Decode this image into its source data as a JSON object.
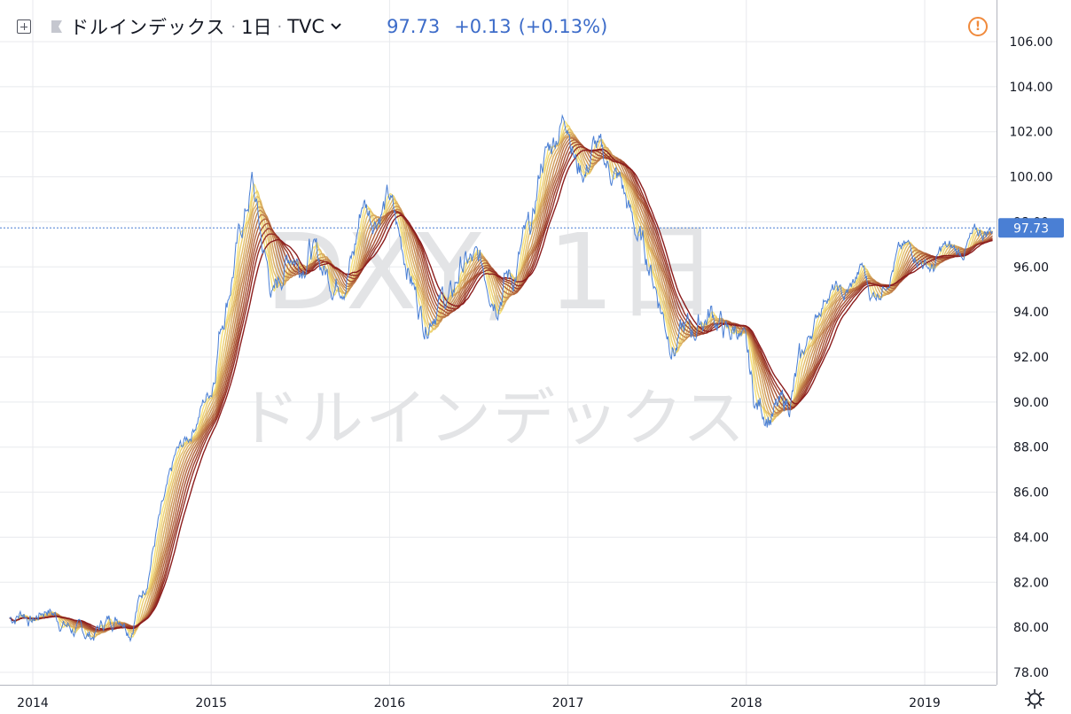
{
  "header": {
    "symbol_name": "ドルインデックス",
    "interval": "1日",
    "source": "TVC",
    "last_price": "97.73",
    "change": "+0.13",
    "change_pct": "(+0.13%)",
    "separator": "·"
  },
  "watermark": {
    "ticker": "DXY, 1日",
    "name": "ドルインデックス"
  },
  "price_label": "97.73",
  "colors": {
    "price_line": "#4a7fd4",
    "price_label_bg": "#4a7fd4",
    "ribbon_fast": "#f6e27a",
    "ribbon_slow": "#8b1c1c",
    "alert": "#f08a3c",
    "grid": "#e8eaed"
  },
  "icons": [
    "plus-square-icon",
    "flag-icon",
    "chevron-down-icon",
    "alert-icon",
    "settings-gear-icon"
  ],
  "chart_data": {
    "type": "line",
    "title": "ドルインデックス · 1日 · TVC",
    "x_ticks": [
      "2014",
      "2015",
      "2016",
      "2017",
      "2018",
      "2019"
    ],
    "x_range": [
      2013.87,
      2019.42
    ],
    "y_ticks": [
      "78.00",
      "80.00",
      "82.00",
      "84.00",
      "86.00",
      "88.00",
      "90.00",
      "92.00",
      "94.00",
      "96.00",
      "98.00",
      "100.00",
      "102.00",
      "104.00",
      "106.00"
    ],
    "ylim": [
      77.6,
      107.0
    ],
    "grid": true,
    "last_value": 97.73,
    "series": [
      {
        "role": "price",
        "x": [
          2013.87,
          2013.95,
          2014.0,
          2014.08,
          2014.17,
          2014.25,
          2014.33,
          2014.4,
          2014.5,
          2014.55,
          2014.58,
          2014.63,
          2014.7,
          2014.75,
          2014.8,
          2014.88,
          2014.95,
          2015.0,
          2015.05,
          2015.1,
          2015.15,
          2015.2,
          2015.23,
          2015.28,
          2015.35,
          2015.4,
          2015.45,
          2015.5,
          2015.55,
          2015.6,
          2015.65,
          2015.7,
          2015.75,
          2015.8,
          2015.85,
          2015.9,
          2015.95,
          2016.0,
          2016.05,
          2016.1,
          2016.15,
          2016.2,
          2016.25,
          2016.3,
          2016.35,
          2016.4,
          2016.45,
          2016.5,
          2016.55,
          2016.6,
          2016.65,
          2016.7,
          2016.75,
          2016.8,
          2016.85,
          2016.9,
          2016.95,
          2017.0,
          2017.05,
          2017.1,
          2017.15,
          2017.2,
          2017.25,
          2017.3,
          2017.35,
          2017.4,
          2017.45,
          2017.5,
          2017.55,
          2017.6,
          2017.65,
          2017.7,
          2017.75,
          2017.8,
          2017.85,
          2017.9,
          2017.95,
          2018.0,
          2018.05,
          2018.1,
          2018.15,
          2018.2,
          2018.25,
          2018.3,
          2018.35,
          2018.4,
          2018.45,
          2018.5,
          2018.55,
          2018.6,
          2018.65,
          2018.7,
          2018.75,
          2018.8,
          2018.85,
          2018.9,
          2018.95,
          2019.0,
          2019.05,
          2019.1,
          2019.15,
          2019.2,
          2019.25,
          2019.3,
          2019.35,
          2019.38
        ],
        "values": [
          80.4,
          80.7,
          80.3,
          80.9,
          80.2,
          79.8,
          79.6,
          80.2,
          80.6,
          80.0,
          80.9,
          81.9,
          84.5,
          85.8,
          87.5,
          88.5,
          89.9,
          90.6,
          93.5,
          95.2,
          97.0,
          98.6,
          99.8,
          97.2,
          94.6,
          95.8,
          96.8,
          96.3,
          97.0,
          96.2,
          95.7,
          95.5,
          95.9,
          96.6,
          99.0,
          98.3,
          98.7,
          99.0,
          97.3,
          96.3,
          94.7,
          93.6,
          94.5,
          94.6,
          94.5,
          96.1,
          96.1,
          96.0,
          95.6,
          94.9,
          95.7,
          95.6,
          97.0,
          97.5,
          100.6,
          101.3,
          102.3,
          102.9,
          100.6,
          100.3,
          101.4,
          100.6,
          100.2,
          99.6,
          98.2,
          97.2,
          96.3,
          95.0,
          93.5,
          92.6,
          93.1,
          93.1,
          93.7,
          94.0,
          93.6,
          92.8,
          93.4,
          91.9,
          89.8,
          89.8,
          89.5,
          89.6,
          90.2,
          91.6,
          92.8,
          93.9,
          94.9,
          95.0,
          94.6,
          95.2,
          96.0,
          94.7,
          95.0,
          95.8,
          96.6,
          96.8,
          96.6,
          96.2,
          95.9,
          96.8,
          96.7,
          96.6,
          97.1,
          97.4,
          97.6,
          97.73
        ]
      }
    ]
  }
}
